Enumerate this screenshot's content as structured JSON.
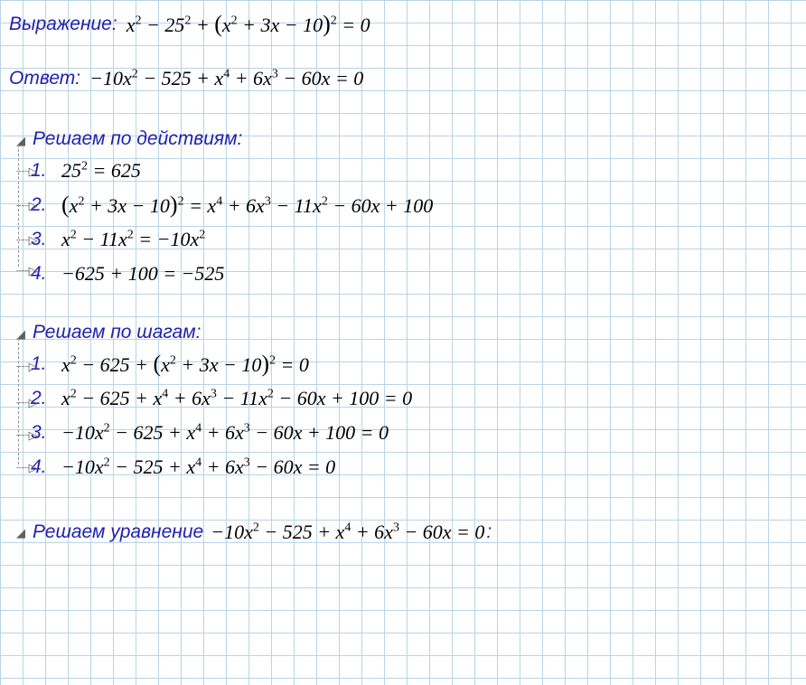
{
  "colors": {
    "label": "#2020b0",
    "math": "#000000",
    "grid": "#b8d4e8",
    "background": "#ffffff",
    "tree": "#606060"
  },
  "fontsize": {
    "label": 21,
    "math": 22,
    "sup": 14
  },
  "grid_size": 25,
  "expressionLabel": "Выражение:",
  "answerLabel": "Ответ:",
  "section1Title": "Решаем по действиям:",
  "section2Title": "Решаем по шагам:",
  "finalLabel": "Решаем уравнение",
  "finalSuffix": ":",
  "steps1": {
    "1": "1.",
    "2": "2.",
    "3": "3.",
    "4": "4."
  },
  "steps2": {
    "1": "1.",
    "2": "2.",
    "3": "3.",
    "4": "4."
  },
  "math": {
    "expression_html": "x<sup>2</sup> − 25<sup>2</sup> + <span class='paren'>(</span>x<sup>2</sup> + 3x − 10<span class='paren'>)</span><sup>2</sup> = 0",
    "answer_html": "−10x<sup>2</sup> − 525 + x<sup>4</sup> + 6x<sup>3</sup> − 60x = 0",
    "s1_1_html": "25<sup>2</sup> = 625",
    "s1_2_html": "<span class='paren'>(</span>x<sup>2</sup> + 3x − 10<span class='paren'>)</span><sup>2</sup> = x<sup>4</sup> + 6x<sup>3</sup> − 11x<sup>2</sup> − 60x + 100",
    "s1_3_html": "x<sup>2</sup> − 11x<sup>2</sup> = −10x<sup>2</sup>",
    "s1_4_html": "−625 + 100 = −525",
    "s2_1_html": "x<sup>2</sup> − 625 + <span class='paren'>(</span>x<sup>2</sup> + 3x − 10<span class='paren'>)</span><sup>2</sup> = 0",
    "s2_2_html": "x<sup>2</sup> − 625 + x<sup>4</sup> + 6x<sup>3</sup> − 11x<sup>2</sup> − 60x + 100 = 0",
    "s2_3_html": "−10x<sup>2</sup> − 625 + x<sup>4</sup> + 6x<sup>3</sup> − 60x + 100 = 0",
    "s2_4_html": "−10x<sup>2</sup> − 525 + x<sup>4</sup> + 6x<sup>3</sup> − 60x = 0",
    "final_html": "−10x<sup>2</sup> − 525 + x<sup>4</sup> + 6x<sup>3</sup> − 60x = 0"
  },
  "tree": {
    "root_glyph": "◢",
    "child_dash": "┄┄",
    "child_arrow": "▷"
  }
}
